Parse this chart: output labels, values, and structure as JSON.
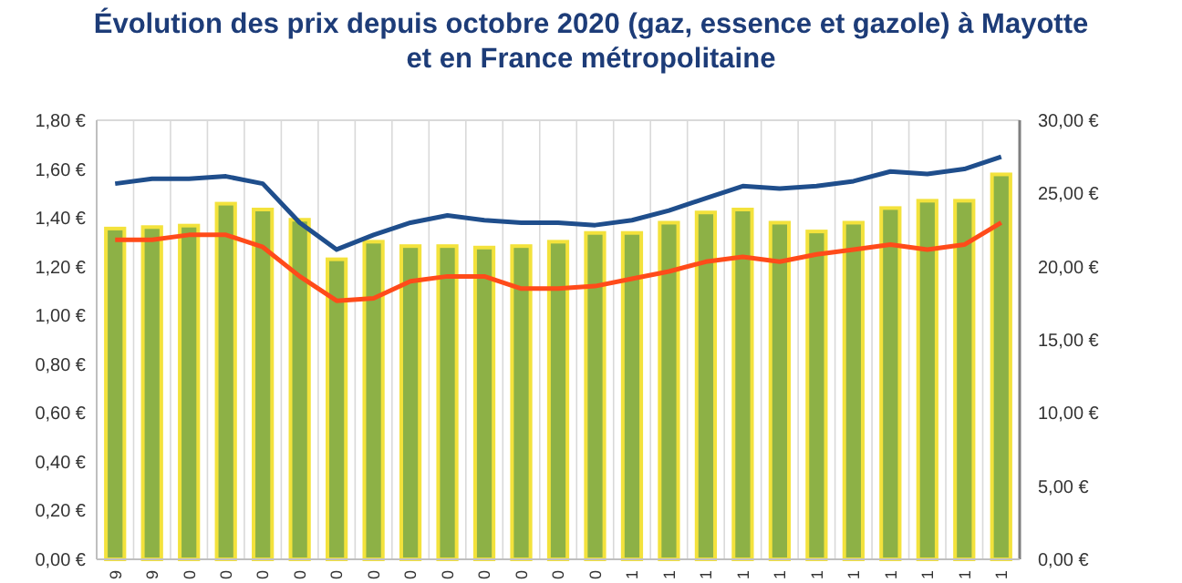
{
  "chart_data": {
    "type": "bar",
    "title": "Évolution des prix depuis octobre 2020 (gaz, essence et gazole) à Mayotte\net en France métropolitaine",
    "categories": [
      "9",
      "9",
      "0",
      "0",
      "0",
      "0",
      "0",
      "0",
      "0",
      "0",
      "0",
      "0",
      "0",
      "0",
      "1",
      "1",
      "1",
      "1",
      "1",
      "1",
      "1",
      "1",
      "1",
      "1",
      "1"
    ],
    "series": [
      {
        "axis": "y2",
        "color": "#8db146",
        "values": [
          22.6,
          22.7,
          22.8,
          24.3,
          23.9,
          23.2,
          20.5,
          21.7,
          21.4,
          21.4,
          21.3,
          21.4,
          21.7,
          22.3,
          22.3,
          23.0,
          23.7,
          23.9,
          23.0,
          22.4,
          23.0,
          24.0,
          24.5,
          24.5,
          26.3
        ]
      },
      {
        "type": "line",
        "color": "#1f4e8c",
        "values": [
          1.54,
          1.56,
          1.56,
          1.57,
          1.54,
          1.38,
          1.27,
          1.33,
          1.38,
          1.41,
          1.39,
          1.38,
          1.38,
          1.37,
          1.39,
          1.43,
          1.48,
          1.53,
          1.52,
          1.53,
          1.55,
          1.59,
          1.58,
          1.6,
          1.65
        ]
      },
      {
        "type": "line",
        "color": "#ff4b1a",
        "values": [
          1.31,
          1.31,
          1.33,
          1.33,
          1.28,
          1.16,
          1.06,
          1.07,
          1.14,
          1.16,
          1.16,
          1.11,
          1.11,
          1.12,
          1.15,
          1.18,
          1.22,
          1.24,
          1.22,
          1.25,
          1.27,
          1.29,
          1.27,
          1.29,
          1.38
        ]
      }
    ],
    "ylim": [
      0,
      1.8
    ],
    "yticks": [
      {
        "value": 0,
        "label": "0,00 €"
      },
      {
        "value": 0.2,
        "label": "0,20 €"
      },
      {
        "value": 0.4,
        "label": "0,40 €"
      },
      {
        "value": 0.6,
        "label": "0,60 €"
      },
      {
        "value": 0.8,
        "label": "0,80 €"
      },
      {
        "value": 1,
        "label": "1,00 €"
      },
      {
        "value": 1.2,
        "label": "1,20 €"
      },
      {
        "value": 1.4,
        "label": "1,40 €"
      },
      {
        "value": 1.6,
        "label": "1,60 €"
      },
      {
        "value": 1.8,
        "label": "1,80 €"
      }
    ],
    "y2lim": [
      0,
      30
    ],
    "y2ticks": [
      {
        "value": 0,
        "label": "0,00 €"
      },
      {
        "value": 5,
        "label": "5,00 €"
      },
      {
        "value": 10,
        "label": "10,00 €"
      },
      {
        "value": 15,
        "label": "15,00 €"
      },
      {
        "value": 20,
        "label": "20,00 €"
      },
      {
        "value": 25,
        "label": "25,00 €"
      },
      {
        "value": 30,
        "label": "30,00 €"
      }
    ],
    "grid": "x",
    "marker": "none",
    "line_style": "solid"
  }
}
